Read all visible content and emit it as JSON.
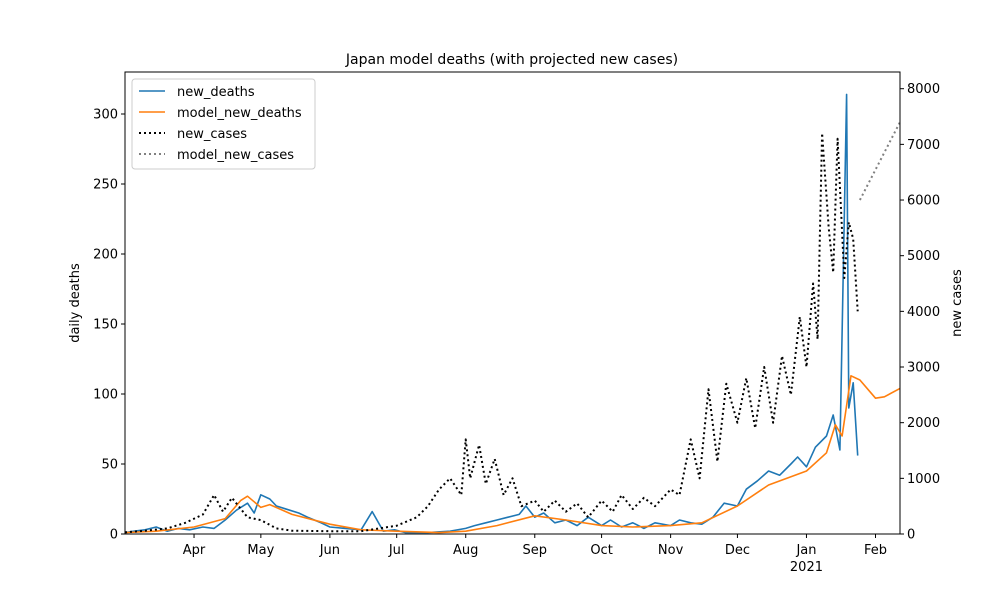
{
  "chart_data": {
    "type": "line",
    "title": "Japan model deaths (with projected new cases)",
    "ylabel_left": "daily deaths",
    "ylabel_right": "new cases",
    "xlim": [
      "2020-03-01",
      "2021-02-12"
    ],
    "ylim_left": [
      0,
      330
    ],
    "ylim_right": [
      0,
      8300
    ],
    "left_ticks": [
      0,
      50,
      100,
      150,
      200,
      250,
      300
    ],
    "right_ticks": [
      0,
      1000,
      2000,
      3000,
      4000,
      5000,
      6000,
      7000,
      8000
    ],
    "x_ticks": [
      {
        "date": "2020-04-01",
        "label": "Apr"
      },
      {
        "date": "2020-05-01",
        "label": "May"
      },
      {
        "date": "2020-06-01",
        "label": "Jun"
      },
      {
        "date": "2020-07-01",
        "label": "Jul"
      },
      {
        "date": "2020-08-01",
        "label": "Aug"
      },
      {
        "date": "2020-09-01",
        "label": "Sep"
      },
      {
        "date": "2020-10-01",
        "label": "Oct"
      },
      {
        "date": "2020-11-01",
        "label": "Nov"
      },
      {
        "date": "2020-12-01",
        "label": "Dec"
      },
      {
        "date": "2021-01-01",
        "label": "Jan",
        "sublabel": "2021"
      },
      {
        "date": "2021-02-01",
        "label": "Feb"
      }
    ],
    "legend_position": "top-left",
    "grid": false,
    "series": [
      {
        "name": "new_deaths",
        "axis": "left",
        "color": "#1f77b4",
        "style": "solid",
        "points": [
          [
            "2020-03-01",
            1
          ],
          [
            "2020-03-05",
            2
          ],
          [
            "2020-03-10",
            3
          ],
          [
            "2020-03-15",
            5
          ],
          [
            "2020-03-20",
            2
          ],
          [
            "2020-03-25",
            4
          ],
          [
            "2020-03-30",
            3
          ],
          [
            "2020-04-05",
            5
          ],
          [
            "2020-04-10",
            4
          ],
          [
            "2020-04-15",
            10
          ],
          [
            "2020-04-20",
            17
          ],
          [
            "2020-04-25",
            22
          ],
          [
            "2020-04-28",
            15
          ],
          [
            "2020-05-01",
            28
          ],
          [
            "2020-05-05",
            25
          ],
          [
            "2020-05-08",
            20
          ],
          [
            "2020-05-12",
            18
          ],
          [
            "2020-05-18",
            15
          ],
          [
            "2020-05-22",
            12
          ],
          [
            "2020-05-28",
            8
          ],
          [
            "2020-06-01",
            5
          ],
          [
            "2020-06-08",
            4
          ],
          [
            "2020-06-15",
            3
          ],
          [
            "2020-06-20",
            16
          ],
          [
            "2020-06-25",
            2
          ],
          [
            "2020-06-30",
            3
          ],
          [
            "2020-07-05",
            1
          ],
          [
            "2020-07-15",
            1
          ],
          [
            "2020-07-25",
            2
          ],
          [
            "2020-08-01",
            4
          ],
          [
            "2020-08-05",
            6
          ],
          [
            "2020-08-10",
            8
          ],
          [
            "2020-08-15",
            10
          ],
          [
            "2020-08-20",
            12
          ],
          [
            "2020-08-25",
            14
          ],
          [
            "2020-08-28",
            20
          ],
          [
            "2020-09-01",
            12
          ],
          [
            "2020-09-05",
            15
          ],
          [
            "2020-09-10",
            8
          ],
          [
            "2020-09-15",
            10
          ],
          [
            "2020-09-20",
            6
          ],
          [
            "2020-09-25",
            12
          ],
          [
            "2020-10-01",
            6
          ],
          [
            "2020-10-05",
            10
          ],
          [
            "2020-10-10",
            5
          ],
          [
            "2020-10-15",
            8
          ],
          [
            "2020-10-20",
            4
          ],
          [
            "2020-10-25",
            8
          ],
          [
            "2020-11-01",
            6
          ],
          [
            "2020-11-05",
            10
          ],
          [
            "2020-11-10",
            8
          ],
          [
            "2020-11-15",
            7
          ],
          [
            "2020-11-20",
            12
          ],
          [
            "2020-11-25",
            22
          ],
          [
            "2020-12-01",
            20
          ],
          [
            "2020-12-05",
            32
          ],
          [
            "2020-12-10",
            38
          ],
          [
            "2020-12-15",
            45
          ],
          [
            "2020-12-20",
            42
          ],
          [
            "2020-12-25",
            50
          ],
          [
            "2020-12-28",
            55
          ],
          [
            "2021-01-01",
            48
          ],
          [
            "2021-01-05",
            62
          ],
          [
            "2021-01-10",
            70
          ],
          [
            "2021-01-13",
            85
          ],
          [
            "2021-01-16",
            60
          ],
          [
            "2021-01-19",
            314
          ],
          [
            "2021-01-20",
            90
          ],
          [
            "2021-01-22",
            108
          ],
          [
            "2021-01-24",
            56
          ]
        ]
      },
      {
        "name": "model_new_deaths",
        "axis": "left",
        "color": "#ff7f0e",
        "style": "solid",
        "points": [
          [
            "2020-03-01",
            1
          ],
          [
            "2020-03-15",
            2
          ],
          [
            "2020-04-01",
            5
          ],
          [
            "2020-04-15",
            11
          ],
          [
            "2020-04-22",
            24
          ],
          [
            "2020-04-25",
            27
          ],
          [
            "2020-05-01",
            19
          ],
          [
            "2020-05-05",
            21
          ],
          [
            "2020-05-15",
            14
          ],
          [
            "2020-06-01",
            7
          ],
          [
            "2020-06-15",
            3
          ],
          [
            "2020-07-01",
            2
          ],
          [
            "2020-07-20",
            1
          ],
          [
            "2020-08-01",
            2
          ],
          [
            "2020-08-15",
            6
          ],
          [
            "2020-09-01",
            13
          ],
          [
            "2020-09-15",
            10
          ],
          [
            "2020-10-01",
            6
          ],
          [
            "2020-10-15",
            5
          ],
          [
            "2020-11-01",
            6
          ],
          [
            "2020-11-15",
            8
          ],
          [
            "2020-12-01",
            20
          ],
          [
            "2020-12-15",
            35
          ],
          [
            "2021-01-01",
            45
          ],
          [
            "2021-01-10",
            58
          ],
          [
            "2021-01-14",
            78
          ],
          [
            "2021-01-17",
            70
          ],
          [
            "2021-01-21",
            113
          ],
          [
            "2021-01-25",
            110
          ],
          [
            "2021-02-01",
            97
          ],
          [
            "2021-02-05",
            98
          ],
          [
            "2021-02-12",
            104
          ]
        ]
      },
      {
        "name": "new_cases",
        "axis": "right",
        "color": "#000000",
        "style": "dotted",
        "points": [
          [
            "2020-03-01",
            30
          ],
          [
            "2020-03-10",
            60
          ],
          [
            "2020-03-20",
            100
          ],
          [
            "2020-03-28",
            200
          ],
          [
            "2020-04-05",
            350
          ],
          [
            "2020-04-10",
            700
          ],
          [
            "2020-04-14",
            400
          ],
          [
            "2020-04-18",
            650
          ],
          [
            "2020-04-25",
            300
          ],
          [
            "2020-05-01",
            250
          ],
          [
            "2020-05-08",
            100
          ],
          [
            "2020-05-15",
            60
          ],
          [
            "2020-06-01",
            50
          ],
          [
            "2020-06-15",
            50
          ],
          [
            "2020-07-01",
            150
          ],
          [
            "2020-07-10",
            300
          ],
          [
            "2020-07-15",
            500
          ],
          [
            "2020-07-20",
            800
          ],
          [
            "2020-07-25",
            1000
          ],
          [
            "2020-07-30",
            700
          ],
          [
            "2020-08-01",
            1700
          ],
          [
            "2020-08-03",
            1000
          ],
          [
            "2020-08-07",
            1600
          ],
          [
            "2020-08-10",
            900
          ],
          [
            "2020-08-14",
            1350
          ],
          [
            "2020-08-18",
            700
          ],
          [
            "2020-08-22",
            1000
          ],
          [
            "2020-08-26",
            500
          ],
          [
            "2020-09-01",
            600
          ],
          [
            "2020-09-05",
            400
          ],
          [
            "2020-09-10",
            600
          ],
          [
            "2020-09-15",
            400
          ],
          [
            "2020-09-20",
            550
          ],
          [
            "2020-09-25",
            300
          ],
          [
            "2020-10-01",
            600
          ],
          [
            "2020-10-06",
            400
          ],
          [
            "2020-10-10",
            700
          ],
          [
            "2020-10-15",
            450
          ],
          [
            "2020-10-20",
            650
          ],
          [
            "2020-10-25",
            500
          ],
          [
            "2020-11-01",
            800
          ],
          [
            "2020-11-05",
            700
          ],
          [
            "2020-11-10",
            1700
          ],
          [
            "2020-11-14",
            1000
          ],
          [
            "2020-11-18",
            2600
          ],
          [
            "2020-11-22",
            1300
          ],
          [
            "2020-11-26",
            2700
          ],
          [
            "2020-12-01",
            2000
          ],
          [
            "2020-12-05",
            2800
          ],
          [
            "2020-12-09",
            1900
          ],
          [
            "2020-12-13",
            3000
          ],
          [
            "2020-12-17",
            2000
          ],
          [
            "2020-12-21",
            3200
          ],
          [
            "2020-12-25",
            2500
          ],
          [
            "2020-12-29",
            3900
          ],
          [
            "2021-01-01",
            3000
          ],
          [
            "2021-01-04",
            4500
          ],
          [
            "2021-01-06",
            3500
          ],
          [
            "2021-01-08",
            7200
          ],
          [
            "2021-01-11",
            5500
          ],
          [
            "2021-01-13",
            4700
          ],
          [
            "2021-01-15",
            7100
          ],
          [
            "2021-01-18",
            4600
          ],
          [
            "2021-01-20",
            5600
          ],
          [
            "2021-01-22",
            5300
          ],
          [
            "2021-01-24",
            4000
          ]
        ]
      },
      {
        "name": "model_new_cases",
        "axis": "right",
        "color": "#808080",
        "style": "dotted",
        "points": [
          [
            "2021-01-25",
            6000
          ],
          [
            "2021-02-12",
            7400
          ]
        ]
      }
    ]
  }
}
